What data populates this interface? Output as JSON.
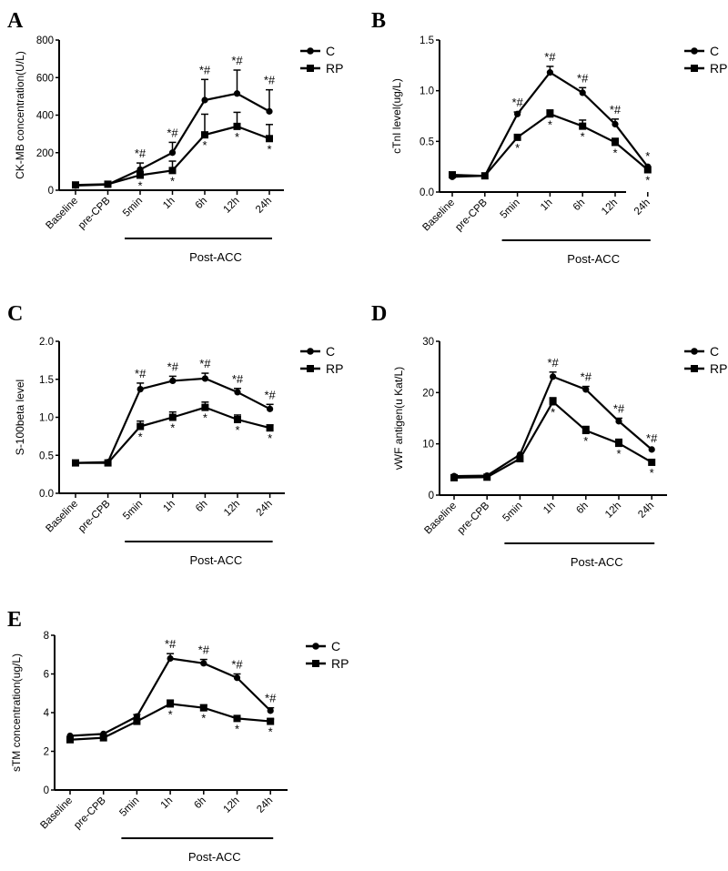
{
  "figure": {
    "post_label": "Post-ACC",
    "legend": [
      {
        "name": "C",
        "marker": "circle"
      },
      {
        "name": "RP",
        "marker": "square"
      }
    ],
    "line_color": "#000000"
  },
  "chart_data": [
    {
      "panel": "A",
      "type": "line",
      "title": "",
      "xlabel": "",
      "ylabel": "CK-MB concentration(U/L)",
      "categories": [
        "Baseline",
        "pre-CPB",
        "5min",
        "1h",
        "6h",
        "12h",
        "24h"
      ],
      "ylim": [
        0,
        800
      ],
      "yticks": [
        0,
        200,
        400,
        600,
        800
      ],
      "ytick_labels": [
        "0",
        "200",
        "400",
        "600",
        "800"
      ],
      "legend_position": "top-right",
      "grid": false,
      "series": [
        {
          "name": "C",
          "marker": "circle",
          "values": [
            25,
            30,
            110,
            200,
            480,
            515,
            420
          ],
          "error": [
            10,
            8,
            35,
            55,
            110,
            125,
            115
          ]
        },
        {
          "name": "RP",
          "marker": "square",
          "values": [
            28,
            32,
            80,
            105,
            295,
            340,
            275
          ],
          "error": [
            12,
            12,
            20,
            50,
            110,
            75,
            75
          ]
        }
      ],
      "annotations": {
        "C": [
          "",
          "",
          "*#",
          "*#",
          "*#",
          "*#",
          "*#"
        ],
        "RP": [
          "",
          "",
          "*",
          "*",
          "*",
          "*",
          "*"
        ]
      },
      "bracket": {
        "from": "5min",
        "to": "24h",
        "label": "Post-ACC"
      }
    },
    {
      "panel": "B",
      "type": "line",
      "title": "",
      "xlabel": "",
      "ylabel": "cTnI level(ug/L)",
      "categories": [
        "Baseline",
        "pre-CPB",
        "5min",
        "1h",
        "6h",
        "12h",
        "24h"
      ],
      "ylim": [
        0,
        1.5
      ],
      "yticks": [
        0,
        0.5,
        1.0,
        1.5
      ],
      "ytick_labels": [
        "0.0",
        "0.5",
        "1.0",
        "1.5"
      ],
      "legend_position": "top-right",
      "grid": false,
      "series": [
        {
          "name": "C",
          "marker": "circle",
          "values": [
            0.15,
            0.16,
            0.77,
            1.18,
            0.98,
            0.67,
            0.25
          ],
          "error": [
            0.01,
            0.01,
            0.02,
            0.06,
            0.05,
            0.05,
            0.01
          ]
        },
        {
          "name": "RP",
          "marker": "square",
          "values": [
            0.17,
            0.16,
            0.54,
            0.77,
            0.65,
            0.49,
            0.22
          ],
          "error": [
            0.01,
            0.01,
            0.01,
            0.04,
            0.06,
            0.04,
            0.01
          ]
        }
      ],
      "annotations": {
        "C": [
          "",
          "",
          "*#",
          "*#",
          "*#",
          "*#",
          "*"
        ],
        "RP": [
          "",
          "",
          "*",
          "*",
          "*",
          "*",
          "*"
        ]
      },
      "bracket": {
        "from": "5min",
        "to": "24h",
        "label": "Post-ACC"
      }
    },
    {
      "panel": "C",
      "type": "line",
      "title": "",
      "xlabel": "",
      "ylabel": "S-100beta level",
      "categories": [
        "Baseline",
        "pre-CPB",
        "5min",
        "1h",
        "6h",
        "12h",
        "24h"
      ],
      "ylim": [
        0,
        2.0
      ],
      "yticks": [
        0,
        0.5,
        1.0,
        1.5,
        2.0
      ],
      "ytick_labels": [
        "0.0",
        "0.5",
        "1.0",
        "1.5",
        "2.0"
      ],
      "legend_position": "top-right",
      "grid": false,
      "series": [
        {
          "name": "C",
          "marker": "circle",
          "values": [
            0.4,
            0.41,
            1.37,
            1.48,
            1.51,
            1.33,
            1.11
          ],
          "error": [
            0.01,
            0.01,
            0.08,
            0.06,
            0.07,
            0.05,
            0.06
          ]
        },
        {
          "name": "RP",
          "marker": "square",
          "values": [
            0.4,
            0.4,
            0.88,
            1.0,
            1.13,
            0.97,
            0.86
          ],
          "error": [
            0.01,
            0.01,
            0.07,
            0.07,
            0.07,
            0.06,
            0.04
          ]
        }
      ],
      "annotations": {
        "C": [
          "",
          "",
          "*#",
          "*#",
          "*#",
          "*#",
          "*#"
        ],
        "RP": [
          "",
          "",
          "*",
          "*",
          "*",
          "*",
          "*"
        ]
      },
      "bracket": {
        "from": "5min",
        "to": "24h",
        "label": "Post-ACC"
      }
    },
    {
      "panel": "D",
      "type": "line",
      "title": "",
      "xlabel": "",
      "ylabel": "vWF antigen(u Kat/L)",
      "categories": [
        "Baseline",
        "pre-CPB",
        "5min",
        "1h",
        "6h",
        "12h",
        "24h"
      ],
      "ylim": [
        0,
        30
      ],
      "yticks": [
        0,
        10,
        20,
        30
      ],
      "ytick_labels": [
        "0",
        "10",
        "20",
        "30"
      ],
      "legend_position": "top-right",
      "grid": false,
      "series": [
        {
          "name": "C",
          "marker": "circle",
          "values": [
            3.7,
            3.8,
            7.9,
            23.1,
            20.6,
            14.4,
            8.9
          ],
          "error": [
            0.2,
            0.2,
            0.3,
            0.9,
            0.6,
            0.6,
            0.3
          ]
        },
        {
          "name": "RP",
          "marker": "square",
          "values": [
            3.4,
            3.5,
            7.1,
            18.2,
            12.6,
            10.1,
            6.4
          ],
          "error": [
            0.2,
            0.2,
            0.3,
            0.8,
            0.8,
            0.8,
            0.3
          ]
        }
      ],
      "annotations": {
        "C": [
          "",
          "",
          "",
          "*#",
          "*#",
          "*#",
          "*#"
        ],
        "RP": [
          "",
          "",
          "",
          "*",
          "*",
          "*",
          "*"
        ]
      },
      "bracket": {
        "from": "5min",
        "to": "24h",
        "label": "Post-ACC"
      }
    },
    {
      "panel": "E",
      "type": "line",
      "title": "",
      "xlabel": "",
      "ylabel": "sTM concentration(ug/L)",
      "categories": [
        "Baseline",
        "pre-CPB",
        "5min",
        "1h",
        "6h",
        "12h",
        "24h"
      ],
      "ylim": [
        0,
        8
      ],
      "yticks": [
        0,
        2,
        4,
        6,
        8
      ],
      "ytick_labels": [
        "0",
        "2",
        "4",
        "6",
        "8"
      ],
      "legend_position": "top-right",
      "grid": false,
      "series": [
        {
          "name": "C",
          "marker": "circle",
          "values": [
            2.8,
            2.9,
            3.8,
            6.8,
            6.55,
            5.8,
            4.1
          ],
          "error": [
            0.05,
            0.05,
            0.1,
            0.25,
            0.2,
            0.2,
            0.15
          ]
        },
        {
          "name": "RP",
          "marker": "square",
          "values": [
            2.6,
            2.7,
            3.55,
            4.45,
            4.25,
            3.7,
            3.55
          ],
          "error": [
            0.05,
            0.05,
            0.1,
            0.2,
            0.15,
            0.12,
            0.12
          ]
        }
      ],
      "annotations": {
        "C": [
          "",
          "",
          "",
          "*#",
          "*#",
          "*#",
          "*#"
        ],
        "RP": [
          "",
          "",
          "",
          "*",
          "*",
          "*",
          "*"
        ]
      },
      "bracket": {
        "from": "5min",
        "to": "24h",
        "label": "Post-ACC"
      }
    }
  ]
}
